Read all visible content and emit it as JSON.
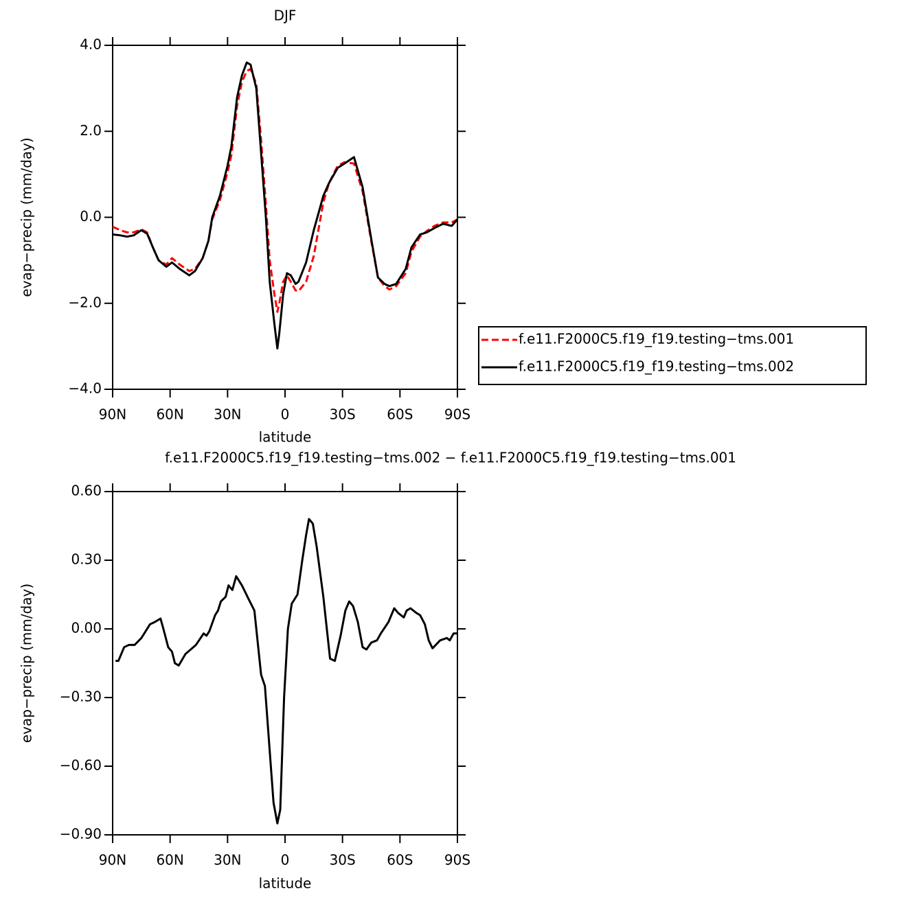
{
  "chart_data": [
    {
      "type": "line",
      "title": "DJF",
      "x_label": "latitude",
      "y_label": "evap−precip (mm/day)",
      "x": [
        90,
        86,
        82.5,
        79,
        75,
        72,
        69,
        66,
        62,
        59,
        55,
        50,
        47,
        43,
        40,
        38,
        34,
        30,
        28,
        25,
        22.5,
        20,
        18,
        15,
        12.5,
        10,
        8,
        5.5,
        4,
        3,
        1,
        -1,
        -3,
        -5.5,
        -7,
        -11,
        -15,
        -20,
        -23,
        -27.5,
        -31,
        -36,
        -40.5,
        -45,
        -48.5,
        -52,
        -54.5,
        -58,
        -63,
        -66,
        -70.5,
        -74,
        -78,
        -82.5,
        -87,
        -90
      ],
      "series": [
        {
          "name": "f.e11.F2000C5.f19_f19.testing−tms.001",
          "color": "#ff0000",
          "line_style": "dashed",
          "values": [
            -0.22,
            -0.3,
            -0.35,
            -0.35,
            -0.28,
            -0.35,
            -0.7,
            -1.0,
            -1.1,
            -0.95,
            -1.1,
            -1.25,
            -1.2,
            -0.95,
            -0.55,
            -0.05,
            0.4,
            1.05,
            1.45,
            2.6,
            3.15,
            3.4,
            3.45,
            3.1,
            1.8,
            0.3,
            -1.0,
            -1.8,
            -2.2,
            -2.0,
            -1.5,
            -1.35,
            -1.5,
            -1.7,
            -1.72,
            -1.5,
            -0.9,
            0.35,
            0.8,
            1.2,
            1.28,
            1.25,
            0.6,
            -0.55,
            -1.4,
            -1.6,
            -1.68,
            -1.6,
            -1.3,
            -0.8,
            -0.45,
            -0.32,
            -0.2,
            -0.12,
            -0.12,
            -0.05
          ]
        },
        {
          "name": "f.e11.F2000C5.f19_f19.testing−tms.002",
          "color": "#000000",
          "line_style": "solid",
          "values": [
            -0.4,
            -0.42,
            -0.45,
            -0.42,
            -0.3,
            -0.38,
            -0.7,
            -1.0,
            -1.15,
            -1.05,
            -1.2,
            -1.35,
            -1.25,
            -0.95,
            -0.55,
            0.0,
            0.5,
            1.2,
            1.65,
            2.8,
            3.3,
            3.6,
            3.55,
            3.0,
            1.5,
            0,
            -1.5,
            -2.5,
            -3.05,
            -2.7,
            -1.8,
            -1.3,
            -1.35,
            -1.55,
            -1.5,
            -1.05,
            -0.3,
            0.5,
            0.8,
            1.15,
            1.25,
            1.4,
            0.7,
            -0.5,
            -1.4,
            -1.55,
            -1.6,
            -1.55,
            -1.2,
            -0.7,
            -0.4,
            -0.35,
            -0.25,
            -0.15,
            -0.2,
            -0.05
          ]
        }
      ],
      "xlim": [
        90,
        -90
      ],
      "xticks": [
        {
          "value": 90,
          "label": "90N"
        },
        {
          "value": 60,
          "label": "60N"
        },
        {
          "value": 30,
          "label": "30N"
        },
        0,
        {
          "value": -30,
          "label": "30S"
        },
        {
          "value": -60,
          "label": "60S"
        },
        {
          "value": -90,
          "label": "90S"
        }
      ],
      "ylim": [
        -4,
        4
      ],
      "yticks": [
        {
          "value": -4,
          "label": "−4.0"
        },
        {
          "value": -2,
          "label": "−2.0"
        },
        {
          "value": 0,
          "label": "0.0"
        },
        {
          "value": 2,
          "label": "2.0"
        },
        {
          "value": 4,
          "label": "4.0"
        }
      ],
      "legend": "right"
    },
    {
      "type": "line",
      "title": "f.e11.F2000C5.f19_f19.testing−tms.002 − f.e11.F2000C5.f19_f19.testing−tms.001",
      "x_label": "latitude",
      "y_label": "evap−precip (mm/day)",
      "x": [
        88.5,
        87,
        84,
        81.5,
        78.5,
        75,
        73.5,
        70.5,
        68,
        65,
        63.5,
        61,
        59,
        57.5,
        55.5,
        52,
        46.5,
        42.5,
        41,
        39.5,
        36.5,
        35,
        33.5,
        31,
        29.5,
        27.5,
        25.5,
        22.5,
        19,
        16,
        12.5,
        10.5,
        6,
        4,
        2.5,
        0.5,
        -1.5,
        -3.5,
        -6.5,
        -9,
        -11,
        -12.5,
        -14.5,
        -16.5,
        -20,
        -23.5,
        -26,
        -29,
        -31.5,
        -33.5,
        -35.5,
        -38,
        -40.5,
        -42.5,
        -45,
        -48,
        -50,
        -54,
        -57,
        -59,
        -62,
        -63.5,
        -65.5,
        -68.5,
        -70.5,
        -73,
        -75,
        -77,
        -81,
        -84.5,
        -86,
        -88,
        -90
      ],
      "series": [
        {
          "color": "#000000",
          "line_style": "solid",
          "values": [
            -0.14,
            -0.14,
            -0.08,
            -0.07,
            -0.07,
            -0.04,
            -0.02,
            0.02,
            0.03,
            0.045,
            0.0,
            -0.08,
            -0.1,
            -0.15,
            -0.16,
            -0.11,
            -0.07,
            -0.02,
            -0.03,
            -0.01,
            0.06,
            0.08,
            0.12,
            0.14,
            0.19,
            0.17,
            0.23,
            0.19,
            0.13,
            0.08,
            -0.2,
            -0.25,
            -0.76,
            -0.85,
            -0.79,
            -0.3,
            0.0,
            0.11,
            0.15,
            0.3,
            0.41,
            0.48,
            0.46,
            0.36,
            0.14,
            -0.13,
            -0.14,
            -0.03,
            0.08,
            0.12,
            0.1,
            0.03,
            -0.08,
            -0.09,
            -0.06,
            -0.05,
            -0.02,
            0.03,
            0.09,
            0.07,
            0.05,
            0.08,
            0.09,
            0.07,
            0.06,
            0.02,
            -0.05,
            -0.085,
            -0.05,
            -0.04,
            -0.05,
            -0.02,
            -0.02
          ]
        }
      ],
      "xlim": [
        90,
        -90
      ],
      "xticks": [
        {
          "value": 90,
          "label": "90N"
        },
        {
          "value": 60,
          "label": "60N"
        },
        {
          "value": 30,
          "label": "30N"
        },
        0,
        {
          "value": -30,
          "label": "30S"
        },
        {
          "value": -60,
          "label": "60S"
        },
        {
          "value": -90,
          "label": "90S"
        }
      ],
      "ylim": [
        -0.9,
        0.6
      ],
      "yticks": [
        {
          "value": -0.9,
          "label": "−0.90"
        },
        {
          "value": -0.6,
          "label": "−0.60"
        },
        {
          "value": -0.3,
          "label": "−0.30"
        },
        {
          "value": 0,
          "label": "0.00"
        },
        {
          "value": 0.3,
          "label": "0.30"
        },
        {
          "value": 0.6,
          "label": "0.60"
        }
      ]
    }
  ]
}
